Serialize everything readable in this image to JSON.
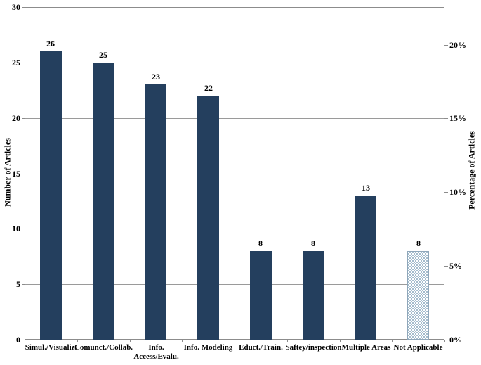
{
  "chart_data": {
    "type": "bar",
    "title": "",
    "categories": [
      "Simul./Visualiz.",
      "Comunct./Collab.",
      "Info.\nAccess/Evalu.",
      "Info. Modeling",
      "Educt./Train.",
      "Saftey/inspection",
      "Multiple Areas",
      "Not Applicable"
    ],
    "values": [
      26,
      25,
      23,
      22,
      8,
      8,
      13,
      8
    ],
    "bar_value_labels": [
      "26",
      "25",
      "23",
      "22",
      "8",
      "8",
      "13",
      "8"
    ],
    "left_axis": {
      "label": "Number of Articles",
      "ticks": [
        0,
        5,
        10,
        15,
        20,
        25,
        30
      ],
      "min": 0,
      "max": 30
    },
    "right_axis": {
      "label": "Percentage of Articles",
      "tick_labels": [
        "0%",
        "5%",
        "10%",
        "15%",
        "20%"
      ],
      "tick_percent_values": [
        0,
        5,
        10,
        15,
        20
      ],
      "total_articles_for_scale": 133
    },
    "layout_hints": {
      "grid": "horizontal-only",
      "legend": "none",
      "pattern_bar_category": "Not Applicable"
    },
    "colors": {
      "bar": "#243f5e",
      "pattern_bar_fill": "#a4bccd",
      "pattern_bar_bg": "#ffffff",
      "pattern_bar_border": "#8fa7ba",
      "grid": "#9a9a9a",
      "axis": "#8c8c8c",
      "text": "#000000",
      "background": "#ffffff"
    }
  }
}
